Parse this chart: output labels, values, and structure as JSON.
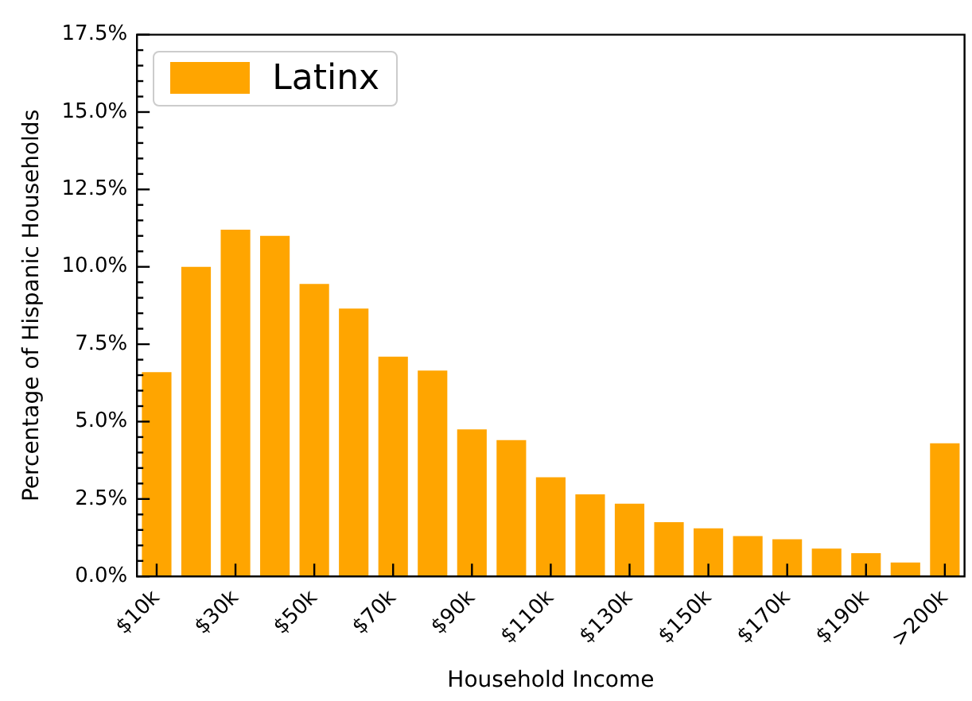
{
  "chart_data": {
    "type": "bar",
    "xlabel": "Household Income",
    "ylabel": "Percentage of Hispanic Households",
    "categories": [
      "$10k",
      null,
      "$30k",
      null,
      "$50k",
      null,
      "$70k",
      null,
      "$90k",
      null,
      "$110k",
      null,
      "$130k",
      null,
      "$150k",
      null,
      "$170k",
      null,
      "$190k",
      null,
      ">200k"
    ],
    "series": [
      {
        "name": "Latinx",
        "color": "#ffa500",
        "values": [
          6.6,
          10.0,
          11.2,
          11.0,
          9.45,
          8.65,
          7.1,
          6.65,
          4.75,
          4.4,
          3.2,
          2.65,
          2.35,
          1.75,
          1.55,
          1.3,
          1.2,
          0.9,
          0.75,
          0.45,
          4.3
        ]
      }
    ],
    "ylim": [
      0,
      17.5
    ],
    "yticks": [
      {
        "value": 0,
        "label": "0.0%"
      },
      {
        "value": 0.5,
        "label": null
      },
      {
        "value": 1,
        "label": null
      },
      {
        "value": 1.5,
        "label": null
      },
      {
        "value": 2,
        "label": null
      },
      {
        "value": 2.5,
        "label": "2.5%"
      },
      {
        "value": 3,
        "label": null
      },
      {
        "value": 3.5,
        "label": null
      },
      {
        "value": 4,
        "label": null
      },
      {
        "value": 4.5,
        "label": null
      },
      {
        "value": 5,
        "label": "5.0%"
      },
      {
        "value": 5.5,
        "label": null
      },
      {
        "value": 6,
        "label": null
      },
      {
        "value": 6.5,
        "label": null
      },
      {
        "value": 7,
        "label": null
      },
      {
        "value": 7.5,
        "label": "7.5%"
      },
      {
        "value": 8,
        "label": null
      },
      {
        "value": 8.5,
        "label": null
      },
      {
        "value": 9,
        "label": null
      },
      {
        "value": 9.5,
        "label": null
      },
      {
        "value": 10,
        "label": "10.0%"
      },
      {
        "value": 10.5,
        "label": null
      },
      {
        "value": 11,
        "label": null
      },
      {
        "value": 11.5,
        "label": null
      },
      {
        "value": 12,
        "label": null
      },
      {
        "value": 12.5,
        "label": "12.5%"
      },
      {
        "value": 13,
        "label": null
      },
      {
        "value": 13.5,
        "label": null
      },
      {
        "value": 14,
        "label": null
      },
      {
        "value": 14.5,
        "label": null
      },
      {
        "value": 15,
        "label": "15.0%"
      },
      {
        "value": 15.5,
        "label": null
      },
      {
        "value": 16,
        "label": null
      },
      {
        "value": 16.5,
        "label": null
      },
      {
        "value": 17,
        "label": null
      },
      {
        "value": 17.5,
        "label": "17.5%"
      }
    ],
    "grid": false,
    "legend": "top left"
  }
}
